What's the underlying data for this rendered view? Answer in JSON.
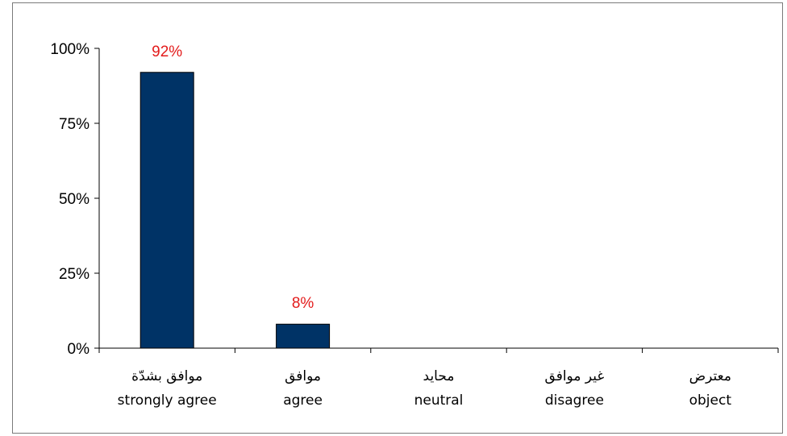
{
  "chart_data": {
    "type": "bar",
    "title": "",
    "xlabel": "",
    "ylabel": "",
    "categories": [
      {
        "ar": "موافق بشدّة",
        "en": "strongly agree"
      },
      {
        "ar": "موافق",
        "en": "agree"
      },
      {
        "ar": "محايد",
        "en": "neutral"
      },
      {
        "ar": "غير موافق",
        "en": "disagree"
      },
      {
        "ar": "معترض",
        "en": "object"
      }
    ],
    "values": [
      92,
      8,
      0,
      0,
      0
    ],
    "data_labels": [
      "92%",
      "8%",
      "",
      "",
      ""
    ],
    "ylim": [
      0,
      100
    ],
    "yticks": [
      0,
      25,
      50,
      75,
      100
    ],
    "ytick_labels": [
      "0%",
      "25%",
      "50%",
      "75%",
      "100%"
    ],
    "grid": false,
    "legend": "none",
    "colors": {
      "bar": "#003366",
      "bar_border": "#000000",
      "data_label": "#e31b1b",
      "axis": "#000000"
    }
  }
}
